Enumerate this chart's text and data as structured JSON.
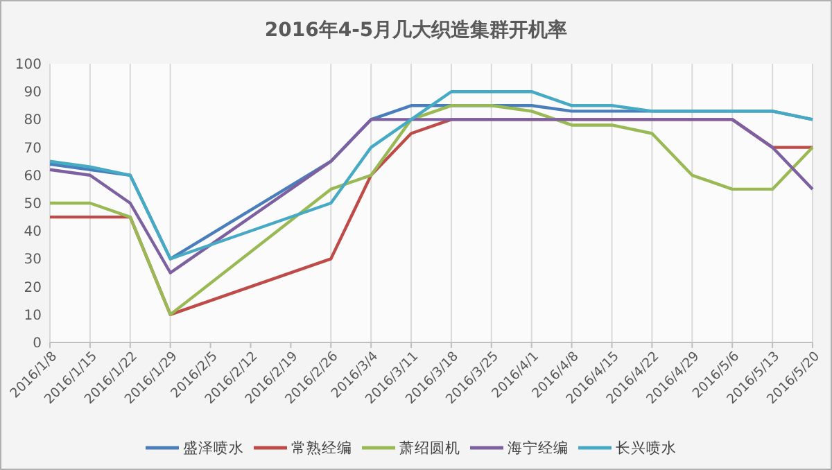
{
  "chart_data": {
    "type": "line",
    "title": "2016年4-5月几大织造集群开机率",
    "categories": [
      "2016/1/8",
      "2016/1/15",
      "2016/1/22",
      "2016/1/29",
      "2016/2/5",
      "2016/2/12",
      "2016/2/19",
      "2016/2/26",
      "2016/3/4",
      "2016/3/11",
      "2016/3/18",
      "2016/3/25",
      "2016/4/1",
      "2016/4/8",
      "2016/4/15",
      "2016/4/22",
      "2016/4/29",
      "2016/5/6",
      "2016/5/13",
      "2016/5/20"
    ],
    "series": [
      {
        "name": "盛泽喷水",
        "color": "#4a7ebb",
        "values": [
          64,
          62,
          60,
          30,
          null,
          null,
          null,
          65,
          80,
          85,
          85,
          85,
          85,
          83,
          83,
          83,
          83,
          83,
          83,
          80
        ]
      },
      {
        "name": "常熟经编",
        "color": "#be4b48",
        "values": [
          45,
          45,
          45,
          10,
          null,
          null,
          null,
          30,
          60,
          75,
          80,
          80,
          80,
          80,
          80,
          80,
          80,
          80,
          70,
          70
        ]
      },
      {
        "name": "萧绍圆机",
        "color": "#98b954",
        "values": [
          50,
          50,
          45,
          10,
          null,
          null,
          null,
          55,
          60,
          80,
          85,
          85,
          83,
          78,
          78,
          75,
          60,
          55,
          55,
          70
        ]
      },
      {
        "name": "海宁经编",
        "color": "#7d60a0",
        "values": [
          62,
          60,
          50,
          25,
          null,
          null,
          null,
          65,
          80,
          80,
          80,
          80,
          80,
          80,
          80,
          80,
          80,
          80,
          70,
          55
        ]
      },
      {
        "name": "长兴喷水",
        "color": "#46aac5",
        "values": [
          65,
          63,
          60,
          30,
          null,
          null,
          null,
          50,
          70,
          80,
          90,
          90,
          90,
          85,
          85,
          83,
          83,
          83,
          83,
          80
        ]
      }
    ],
    "ylim": [
      0,
      100
    ],
    "yticks": [
      0,
      10,
      20,
      30,
      40,
      50,
      60,
      70,
      80,
      90,
      100
    ],
    "grid": "x",
    "legend": "bottom",
    "marker": "none",
    "line_style": "solid"
  }
}
